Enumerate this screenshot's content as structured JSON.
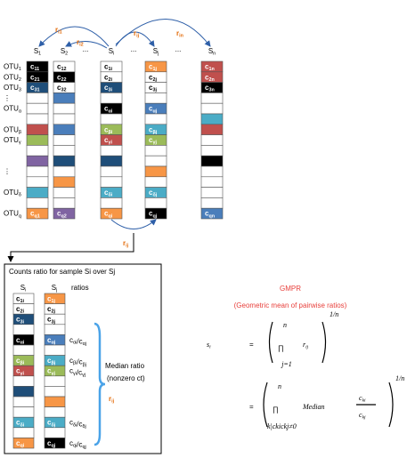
{
  "columns": [
    {
      "header": "S1",
      "cells": [
        "c11",
        "c21",
        "c31",
        null,
        null,
        null,
        null,
        null,
        null,
        null,
        null,
        null,
        null,
        null,
        "cq1"
      ]
    },
    {
      "header": "S2",
      "cells": [
        "c12",
        "c22",
        "c32",
        null,
        null,
        null,
        null,
        null,
        null,
        null,
        null,
        null,
        null,
        null,
        "cq2"
      ]
    },
    {
      "header": "Si",
      "cells": [
        "c1i",
        "c2i",
        "c3i",
        null,
        "cαi",
        null,
        "cβi",
        "cγi",
        null,
        null,
        null,
        null,
        "cδi",
        null,
        "cqi"
      ]
    },
    {
      "header": "Sj",
      "cells": [
        "c1j",
        "c2j",
        "c3j",
        null,
        "cαj",
        null,
        "cβj",
        "cγj",
        null,
        null,
        null,
        null,
        "cδj",
        null,
        "cqj"
      ]
    },
    {
      "header": "Sn",
      "cells": [
        "c1n",
        "c2n",
        "c3n",
        null,
        null,
        null,
        null,
        null,
        null,
        null,
        null,
        null,
        null,
        null,
        "cqn"
      ]
    }
  ],
  "column_gaps": [
    "...",
    "...",
    "..."
  ],
  "row_labels": [
    "OTU1",
    "OTU2",
    "OTU3",
    "⋮",
    "OTUα",
    null,
    "OTUβ",
    "OTUγ",
    null,
    null,
    "⋮",
    null,
    "OTUδ",
    null,
    "OTUq"
  ],
  "ratio_labels": [
    "ri1",
    "ri2",
    "rij",
    "rin"
  ],
  "bottom_ratio_label": "rij",
  "panel": {
    "title": "Counts ratio for sample Si over Sj",
    "headers": [
      "Si",
      "Sj",
      "ratios"
    ],
    "si_cells": [
      "c1i",
      "c2i",
      "c3i",
      null,
      "cαi",
      null,
      "cβi",
      "cγi",
      null,
      null,
      null,
      null,
      "cδi",
      null,
      "cqi"
    ],
    "sj_cells": [
      "c1j",
      "c2j",
      "c3j",
      null,
      "cαj",
      null,
      "cβj",
      "cγj",
      null,
      null,
      null,
      null,
      "cδj",
      null,
      "cqj"
    ],
    "ratios": [
      null,
      null,
      null,
      null,
      "cαi/cαj",
      null,
      "cβi/cβj",
      "cγi/cγj",
      null,
      null,
      null,
      null,
      "cδi/cδj",
      null,
      "cqi/cqj"
    ],
    "median": "Median ratio",
    "nonzero": "(nonzero ct)",
    "r": "rij"
  },
  "gmpr": {
    "title": "GMPR",
    "subtitle": "(Geometric mean of pairwise ratios)"
  },
  "formula": {
    "lhs": "si",
    "eq1": "=",
    "prod1": "∏",
    "upper1": "n",
    "lower1": "j=1",
    "term": "rij",
    "power1": "1/n",
    "eq2": "=",
    "prod2": "∏",
    "upper2": "n",
    "lower2": "k|ckickj≠0",
    "median": "Median",
    "num": "cki",
    "den": "ckj",
    "power2": "1/n"
  }
}
